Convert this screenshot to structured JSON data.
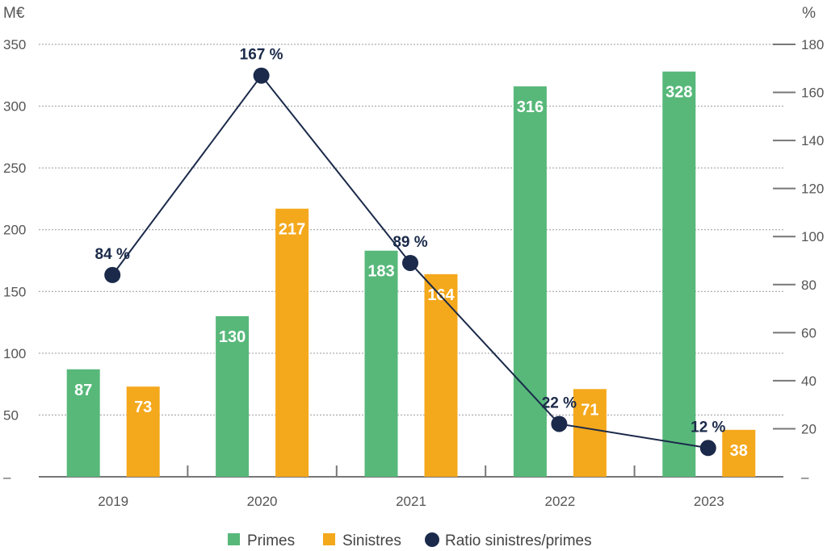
{
  "chart_data": {
    "type": "bar",
    "categories": [
      "2019",
      "2020",
      "2021",
      "2022",
      "2023"
    ],
    "series": [
      {
        "name": "Primes",
        "kind": "bar",
        "axis": "left",
        "color": "#57b87a",
        "values": [
          87,
          130,
          183,
          316,
          328
        ]
      },
      {
        "name": "Sinistres",
        "kind": "bar",
        "axis": "left",
        "color": "#f4a81c",
        "values": [
          73,
          217,
          164,
          71,
          38
        ]
      },
      {
        "name": "Ratio sinistres/primes",
        "kind": "line",
        "axis": "right",
        "color": "#1b2a4a",
        "values": [
          84,
          167,
          89,
          22,
          12
        ],
        "labels": [
          "84 %",
          "167 %",
          "89 %",
          "22 %",
          "12 %"
        ]
      }
    ],
    "left_axis": {
      "unit": "M€",
      "ylim": [
        0,
        350
      ],
      "ticks": [
        "–",
        "50",
        "100",
        "150",
        "200",
        "250",
        "300",
        "350"
      ],
      "tick_values": [
        0,
        50,
        100,
        150,
        200,
        250,
        300,
        350
      ]
    },
    "right_axis": {
      "unit": "%",
      "ylim": [
        0,
        180
      ],
      "ticks": [
        "–",
        "20",
        "40",
        "60",
        "80",
        "100",
        "120",
        "140",
        "160",
        "180"
      ],
      "tick_values": [
        0,
        20,
        40,
        60,
        80,
        100,
        120,
        140,
        160,
        180
      ]
    },
    "grid": true,
    "legend": "bottom-center"
  }
}
